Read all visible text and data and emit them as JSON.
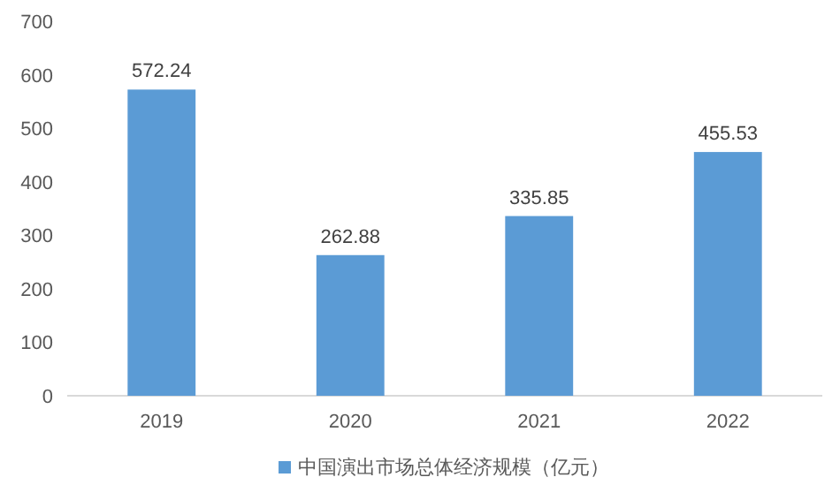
{
  "chart_data": {
    "type": "bar",
    "categories": [
      "2019",
      "2020",
      "2021",
      "2022"
    ],
    "series": [
      {
        "name": "中国演出市场总体经济规模（亿元）",
        "color": "#5b9bd5",
        "values": [
          572.24,
          262.88,
          335.85,
          455.53
        ]
      }
    ],
    "ylim": [
      0,
      700
    ],
    "yticks": [
      0,
      100,
      200,
      300,
      400,
      500,
      600,
      700
    ],
    "data_labels": true,
    "legend": "bottom",
    "grid": false
  }
}
